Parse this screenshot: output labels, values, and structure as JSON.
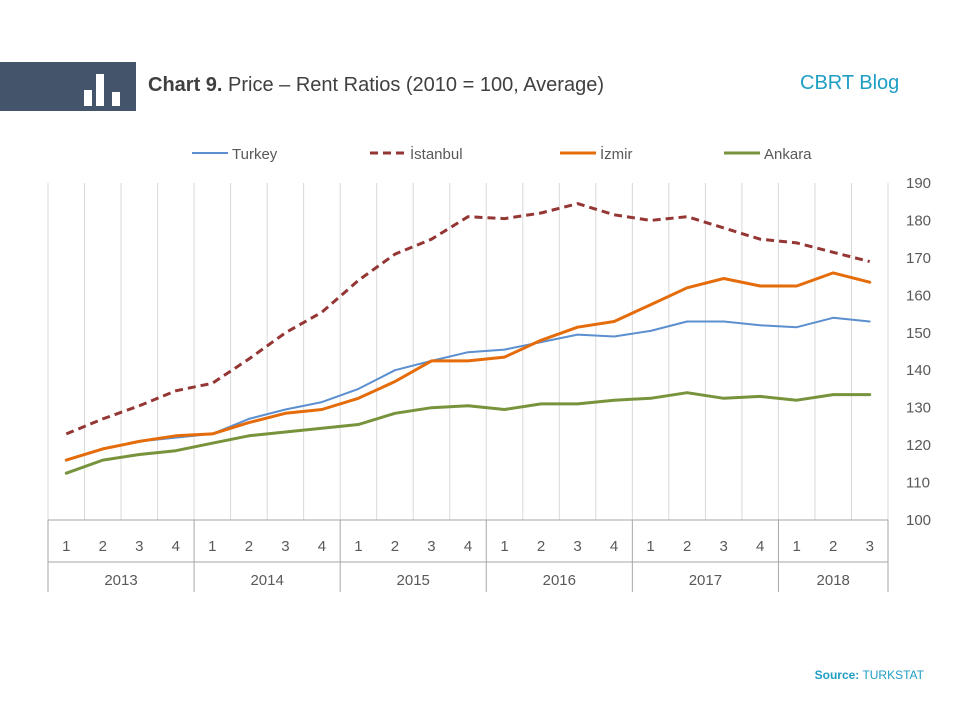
{
  "header": {
    "title_bold": "Chart 9.",
    "title": "Price – Rent Ratios (2010 = 100, Average)",
    "blog_name": "CBRT Blog"
  },
  "footer": {
    "source_label": "Source:",
    "source_value": "TURKSTAT"
  },
  "colors": {
    "header_band": "#44546a",
    "brand": "#1f9ec4",
    "turkey": "#5b8fd0",
    "istanbul": "#943634",
    "izmir": "#e46c0a",
    "ankara": "#77933c"
  },
  "chart_data": {
    "type": "line",
    "ylim": [
      100,
      190
    ],
    "yticks": [
      100,
      110,
      120,
      130,
      140,
      150,
      160,
      170,
      180,
      190
    ],
    "y_axis_side": "right",
    "legend_position": "top",
    "grid": "vertical lines only",
    "categories": [
      "1",
      "2",
      "3",
      "4",
      "1",
      "2",
      "3",
      "4",
      "1",
      "2",
      "3",
      "4",
      "1",
      "2",
      "3",
      "4",
      "1",
      "2",
      "3",
      "4",
      "1",
      "2",
      "3"
    ],
    "years": [
      {
        "label": "2013",
        "quarters": 4
      },
      {
        "label": "2014",
        "quarters": 4
      },
      {
        "label": "2015",
        "quarters": 4
      },
      {
        "label": "2016",
        "quarters": 4
      },
      {
        "label": "2017",
        "quarters": 4
      },
      {
        "label": "2018",
        "quarters": 3
      }
    ],
    "series": [
      {
        "name": "Turkey",
        "key": "turkey",
        "dashed": false,
        "width": 2,
        "values": [
          116,
          119,
          121,
          122,
          123,
          127,
          129.5,
          131.5,
          135,
          140,
          142.5,
          144.8,
          145.5,
          147.5,
          149.5,
          149,
          150.5,
          153,
          153,
          152,
          151.5,
          154,
          153
        ]
      },
      {
        "name": "İstanbul",
        "key": "istanbul",
        "dashed": true,
        "width": 3,
        "values": [
          123,
          127,
          130.5,
          134.5,
          136.5,
          143,
          150,
          155.5,
          164,
          171,
          175,
          181,
          180.5,
          182,
          184.5,
          181.5,
          180,
          181,
          178,
          175,
          174,
          171.5,
          169
        ]
      },
      {
        "name": "İzmir",
        "key": "izmir",
        "dashed": false,
        "width": 3,
        "values": [
          116,
          119,
          121,
          122.5,
          123,
          126,
          128.5,
          129.5,
          132.5,
          137,
          142.5,
          142.5,
          143.5,
          148,
          151.5,
          153,
          157.5,
          162,
          164.5,
          162.5,
          162.5,
          166,
          163.5
        ]
      },
      {
        "name": "Ankara",
        "key": "ankara",
        "dashed": false,
        "width": 3,
        "values": [
          112.5,
          116,
          117.5,
          118.5,
          120.5,
          122.5,
          123.5,
          124.5,
          125.5,
          128.5,
          130,
          130.5,
          129.5,
          131,
          131,
          132,
          132.5,
          134,
          132.5,
          133,
          132,
          133.5,
          133.5
        ]
      }
    ]
  }
}
